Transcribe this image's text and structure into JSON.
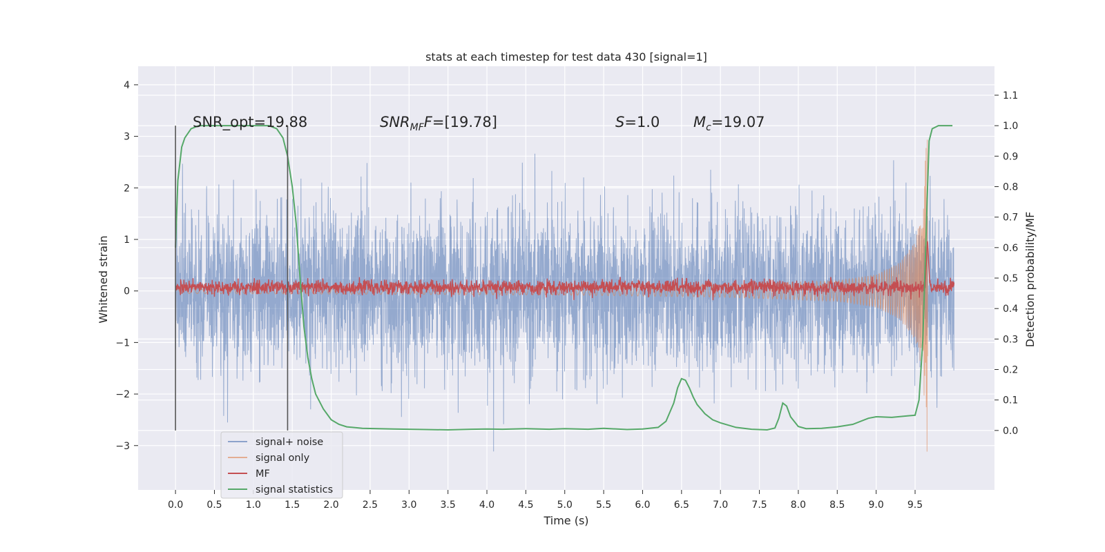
{
  "chart_data": {
    "type": "line",
    "title": "stats at each timestep for test data 430 [signal=1]",
    "xlabel": "Time (s)",
    "ylabel": "Whitened strain",
    "y2label": "Detection probability/MF",
    "xlim": [
      -0.48,
      10.52
    ],
    "ylim": [
      -3.86,
      4.36
    ],
    "y2lim": [
      -0.195,
      1.195
    ],
    "x_ticks": [
      0.0,
      0.5,
      1.0,
      1.5,
      2.0,
      2.5,
      3.0,
      3.5,
      4.0,
      4.5,
      5.0,
      5.5,
      6.0,
      6.5,
      7.0,
      7.5,
      8.0,
      8.5,
      9.0,
      9.5
    ],
    "x_tick_labels": [
      "0.0",
      "0.5",
      "1.0",
      "1.5",
      "2.0",
      "2.5",
      "3.0",
      "3.5",
      "4.0",
      "4.5",
      "5.0",
      "5.5",
      "6.0",
      "6.5",
      "7.0",
      "7.5",
      "8.0",
      "8.5",
      "9.0",
      "9.5"
    ],
    "y_ticks": [
      -3,
      -2,
      -1,
      0,
      1,
      2,
      3,
      4
    ],
    "y_tick_labels": [
      "−3",
      "−2",
      "−1",
      "0",
      "1",
      "2",
      "3",
      "4"
    ],
    "y2_ticks": [
      0.0,
      0.1,
      0.2,
      0.3,
      0.4,
      0.5,
      0.6,
      0.7,
      0.8,
      0.9,
      1.0,
      1.1
    ],
    "y2_tick_labels": [
      "0.0",
      "0.1",
      "0.2",
      "0.3",
      "0.4",
      "0.5",
      "0.6",
      "0.7",
      "0.8",
      "0.9",
      "1.0",
      "1.1"
    ],
    "grid": true,
    "legend_position": "lower-left",
    "annotations": {
      "snr_opt": "SNR_opt=19.88",
      "snr_mf_prefix": "SNR",
      "snr_mf_sub": "MF",
      "snr_mf_italic_f": "F",
      "snr_mf_value": "=[19.78]",
      "s_symbol": "S",
      "s_value": "=1.0",
      "mc_symbol": "M",
      "mc_sub": "c",
      "mc_value": "=19.07"
    },
    "vertical_markers": [
      {
        "x": 0.0,
        "y2_from": 0.0,
        "y2_to": 1.0
      },
      {
        "x": 1.44,
        "y2_from": 0.0,
        "y2_to": 1.0
      }
    ],
    "series": [
      {
        "name": "signal+ noise",
        "axis": "left",
        "color": "#4c72b0",
        "kind": "noise",
        "x_range": [
          0.0,
          10.0
        ],
        "std": 0.78,
        "clip": [
          -3.35,
          4.05
        ]
      },
      {
        "name": "signal only",
        "axis": "left",
        "color": "#dd8452",
        "kind": "chirp",
        "x_range": [
          0.0,
          9.66
        ],
        "envelope_points": [
          [
            0.0,
            0.05
          ],
          [
            5.0,
            0.08
          ],
          [
            7.0,
            0.12
          ],
          [
            8.5,
            0.2
          ],
          [
            9.0,
            0.32
          ],
          [
            9.3,
            0.55
          ],
          [
            9.5,
            0.95
          ],
          [
            9.6,
            1.6
          ],
          [
            9.66,
            3.4
          ]
        ]
      },
      {
        "name": "MF",
        "axis": "right",
        "color": "#c44e52",
        "kind": "mf",
        "x_range": [
          0.0,
          10.0
        ],
        "baseline": 0.47,
        "jitter": 0.012,
        "peak": {
          "x": 9.66,
          "value": 0.63
        }
      },
      {
        "name": "signal statistics",
        "axis": "right",
        "color": "#55a868",
        "kind": "line",
        "x": [
          0.0,
          0.03,
          0.08,
          0.12,
          0.2,
          0.3,
          0.5,
          0.8,
          1.0,
          1.2,
          1.3,
          1.38,
          1.44,
          1.5,
          1.55,
          1.6,
          1.65,
          1.7,
          1.75,
          1.8,
          1.9,
          2.0,
          2.1,
          2.2,
          2.4,
          2.8,
          3.2,
          3.5,
          3.8,
          4.0,
          4.2,
          4.5,
          4.8,
          5.0,
          5.3,
          5.5,
          5.8,
          6.0,
          6.2,
          6.3,
          6.4,
          6.45,
          6.5,
          6.55,
          6.6,
          6.65,
          6.7,
          6.8,
          6.9,
          7.0,
          7.2,
          7.4,
          7.6,
          7.7,
          7.75,
          7.8,
          7.85,
          7.9,
          8.0,
          8.1,
          8.3,
          8.5,
          8.7,
          8.9,
          9.0,
          9.2,
          9.4,
          9.5,
          9.55,
          9.6,
          9.63,
          9.66,
          9.68,
          9.72,
          9.8,
          9.9,
          9.98
        ],
        "values": [
          0.6,
          0.82,
          0.93,
          0.96,
          0.99,
          1.0,
          1.0,
          1.0,
          1.0,
          1.0,
          0.99,
          0.96,
          0.9,
          0.8,
          0.68,
          0.5,
          0.34,
          0.24,
          0.17,
          0.12,
          0.07,
          0.035,
          0.02,
          0.012,
          0.007,
          0.005,
          0.003,
          0.002,
          0.004,
          0.005,
          0.004,
          0.006,
          0.004,
          0.006,
          0.004,
          0.007,
          0.003,
          0.005,
          0.01,
          0.03,
          0.09,
          0.14,
          0.17,
          0.165,
          0.14,
          0.11,
          0.085,
          0.055,
          0.035,
          0.025,
          0.01,
          0.004,
          0.002,
          0.008,
          0.04,
          0.09,
          0.08,
          0.045,
          0.013,
          0.006,
          0.007,
          0.012,
          0.02,
          0.04,
          0.045,
          0.043,
          0.048,
          0.05,
          0.1,
          0.3,
          0.55,
          0.8,
          0.95,
          0.99,
          1.0,
          1.0,
          1.0
        ]
      }
    ]
  }
}
